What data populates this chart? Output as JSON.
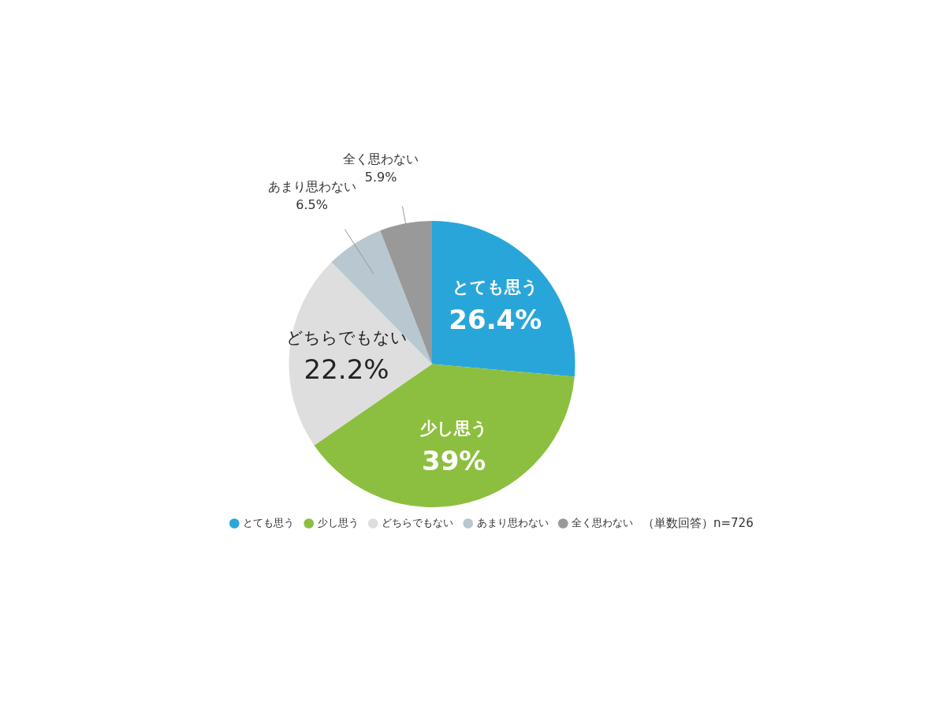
{
  "chart_data": {
    "type": "pie",
    "categories": [
      "とても思う",
      "少し思う",
      "どちらでもない",
      "あまり思わない",
      "全く思わない"
    ],
    "values": [
      26.4,
      39,
      22.2,
      6.5,
      5.9
    ],
    "colors": [
      "#29a6d9",
      "#8cbf3f",
      "#dedede",
      "#b8c7d0",
      "#999999"
    ],
    "value_labels": [
      "26.4%",
      "39%",
      "22.2%",
      "6.5%",
      "5.9%"
    ],
    "legend": "bottom",
    "annotations": [
      "（単数回答）n=726"
    ]
  }
}
